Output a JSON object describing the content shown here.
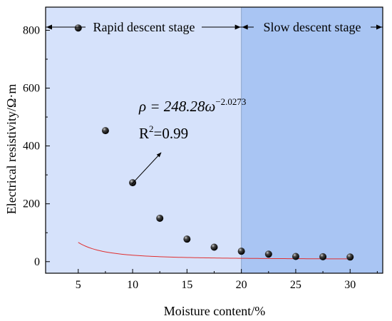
{
  "chart_data": {
    "type": "scatter",
    "xlabel": "Moisture content/%",
    "ylabel": "Electrical resistivity/Ω·m",
    "xlim": [
      2,
      33
    ],
    "ylim": [
      -40,
      880
    ],
    "x_ticks": [
      "5",
      "10",
      "15",
      "20",
      "25",
      "30"
    ],
    "y_ticks": [
      "0",
      "200",
      "400",
      "600",
      "800"
    ],
    "series": [
      {
        "x": [
          5,
          7.5,
          10,
          12.5,
          15,
          17.5,
          20,
          22.5,
          25,
          27.5,
          30
        ],
        "y": [
          808,
          453,
          273,
          150,
          78,
          50,
          36,
          26,
          18,
          17,
          16
        ]
      }
    ],
    "fit": {
      "equation": "ρ = 248.28ω^-2.0273",
      "equation_base": "ρ = 248.28ω",
      "equation_exponent": "−2.0273",
      "r2_label": "R",
      "r2_exponent": "2",
      "r2_value": "=0.99",
      "color": "#e03030"
    },
    "regions": [
      {
        "label": "Rapid descent stage",
        "x_range": [
          2,
          20
        ],
        "color": "#d6e2fb"
      },
      {
        "label": "Slow descent stage",
        "x_range": [
          20,
          33
        ],
        "color": "#a9c5f3"
      }
    ],
    "point_color": "#111111",
    "grid": false
  }
}
